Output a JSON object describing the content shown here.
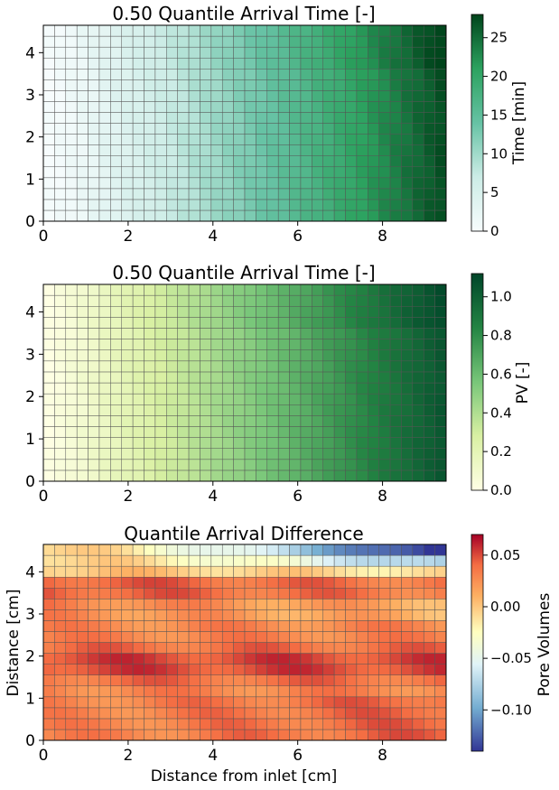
{
  "figure": {
    "background": "#ffffff",
    "grid_line_color": "#555555"
  },
  "chart_data": [
    {
      "type": "heatmap",
      "title": "0.50 Quantile Arrival Time [-]",
      "xlabel": "",
      "ylabel": "",
      "xlim": [
        0,
        9.5
      ],
      "ylim": [
        0,
        4.65
      ],
      "grid": true,
      "grid_shape": {
        "cols": 36,
        "rows": 18
      },
      "x_ticks": [
        0,
        2,
        4,
        6,
        8
      ],
      "y_ticks": [
        0,
        1,
        2,
        3,
        4
      ],
      "colormap": "greens",
      "colorbar": {
        "label": "Time [min]",
        "range": [
          0,
          28
        ],
        "ticks": [
          0,
          5,
          10,
          15,
          20,
          25
        ]
      },
      "values_trend": "increases left to right from ~0 at inlet to ~26 at x=9.5"
    },
    {
      "type": "heatmap",
      "title": "0.50 Quantile Arrival Time [-]",
      "xlabel": "",
      "ylabel": "",
      "xlim": [
        0,
        9.5
      ],
      "ylim": [
        0,
        4.65
      ],
      "grid": true,
      "grid_shape": {
        "cols": 36,
        "rows": 18
      },
      "x_ticks": [
        0,
        2,
        4,
        6,
        8
      ],
      "y_ticks": [
        0,
        1,
        2,
        3,
        4
      ],
      "colormap": "yellow-green",
      "colorbar": {
        "label": "PV [-]",
        "range": [
          0,
          1.12
        ],
        "ticks": [
          0.0,
          0.2,
          0.4,
          0.6,
          0.8,
          1.0
        ],
        "tick_labels": [
          "0.0",
          "0.2",
          "0.4",
          "0.6",
          "0.8",
          "1.0"
        ]
      },
      "values_trend": "increases left to right from ~0 at inlet to ~1.1 at x=9.5"
    },
    {
      "type": "heatmap",
      "title": "Quantile Arrival Difference",
      "xlabel": "Distance from inlet [cm]",
      "ylabel": "Distance [cm]",
      "xlim": [
        0,
        9.5
      ],
      "ylim": [
        0,
        4.65
      ],
      "grid": true,
      "grid_shape": {
        "cols": 36,
        "rows": 18
      },
      "x_ticks": [
        0,
        2,
        4,
        6,
        8
      ],
      "y_ticks": [
        0,
        1,
        2,
        3,
        4
      ],
      "colormap": "red-yellow-blue",
      "colorbar": {
        "label": "Pore Volumes",
        "range": [
          -0.14,
          0.07
        ],
        "ticks": [
          0.05,
          0.0,
          -0.05,
          -0.1
        ],
        "tick_labels": [
          "0.05",
          "0.00",
          "−0.05",
          "−0.10"
        ]
      },
      "values_trend": "mostly positive (0.01-0.07), strongest near y=1.8 and y=3.6; negative (to ~-0.14) in top rows near outlet"
    }
  ]
}
